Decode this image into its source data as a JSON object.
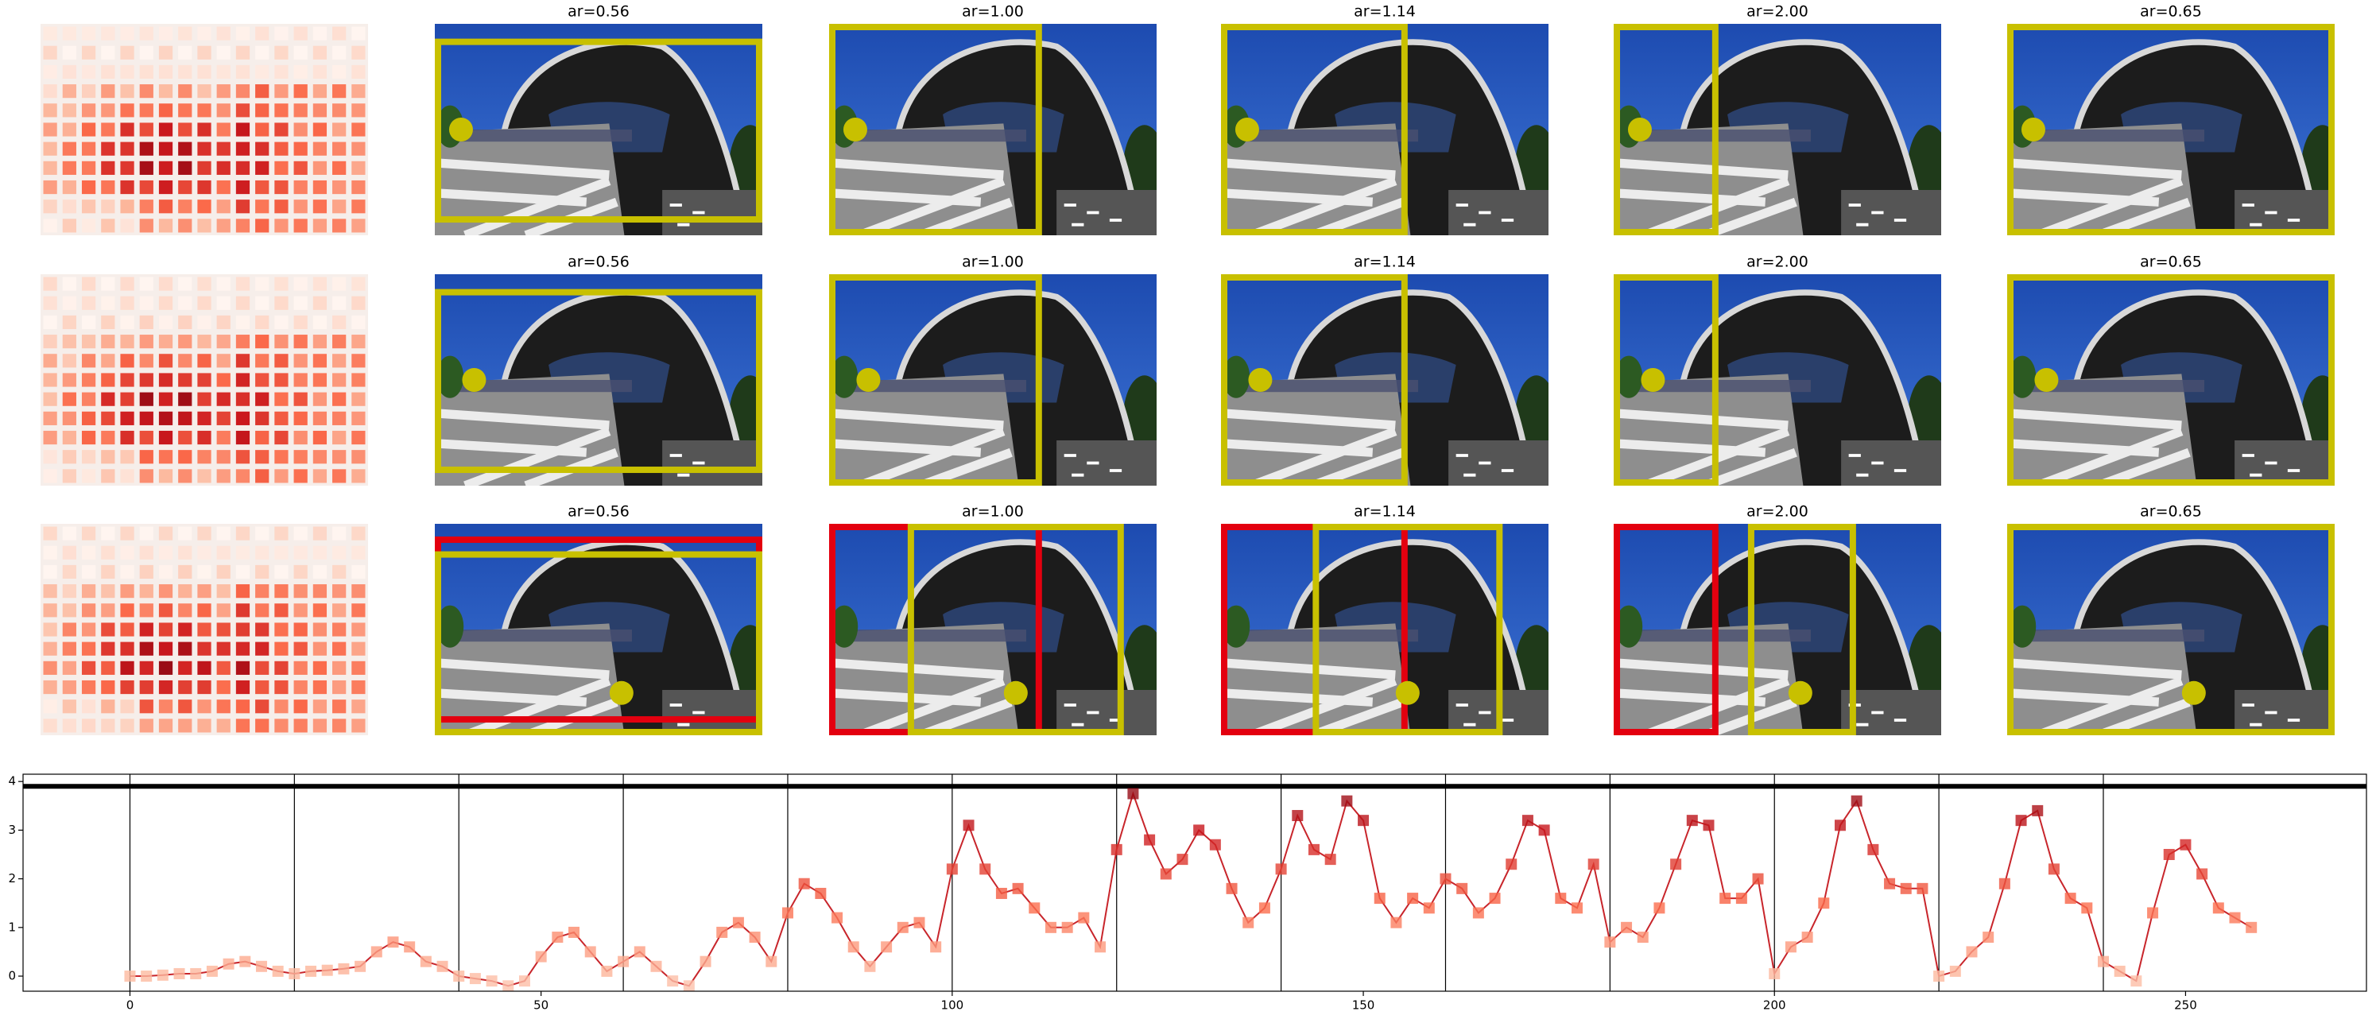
{
  "panels": {
    "titles": [
      [
        "ar=0.56",
        "ar=1.00",
        "ar=1.14",
        "ar=2.00",
        "ar=0.65"
      ],
      [
        "ar=0.56",
        "ar=1.00",
        "ar=1.14",
        "ar=2.00",
        "ar=0.65"
      ],
      [
        "ar=0.56",
        "ar=1.00",
        "ar=1.14",
        "ar=2.00",
        "ar=0.65"
      ]
    ]
  },
  "chart_data": {
    "type": "line",
    "color": "#c8252b",
    "x": [
      0,
      2,
      4,
      6,
      8,
      10,
      12,
      14,
      16,
      18,
      20,
      22,
      24,
      26,
      28,
      30,
      32,
      34,
      36,
      38,
      40,
      42,
      44,
      46,
      48,
      50,
      52,
      54,
      56,
      58,
      60,
      62,
      64,
      66,
      68,
      70,
      72,
      74,
      76,
      78,
      80,
      82,
      84,
      86,
      88,
      90,
      92,
      94,
      96,
      98,
      100,
      102,
      104,
      106,
      108,
      110,
      112,
      114,
      116,
      118,
      120,
      122,
      124,
      126,
      128,
      130,
      132,
      134,
      136,
      138,
      140,
      142,
      144,
      146,
      148,
      150,
      152,
      154,
      156,
      158,
      160,
      162,
      164,
      166,
      168,
      170,
      172,
      174,
      176,
      178,
      180,
      182,
      184,
      186,
      188,
      190,
      192,
      194,
      196,
      198,
      200,
      202,
      204,
      206,
      208,
      210,
      212,
      214,
      216,
      218,
      220,
      222,
      224,
      226,
      228,
      230,
      232,
      234,
      236,
      238,
      240,
      242,
      244,
      246,
      248,
      250,
      252,
      254,
      256,
      258
    ],
    "values": [
      0,
      0,
      0.02,
      0.05,
      0.05,
      0.1,
      0.25,
      0.3,
      0.2,
      0.1,
      0.05,
      0.1,
      0.12,
      0.15,
      0.2,
      0.5,
      0.7,
      0.6,
      0.3,
      0.2,
      0,
      -0.05,
      -0.1,
      -0.2,
      -0.1,
      0.4,
      0.8,
      0.9,
      0.5,
      0.1,
      0.3,
      0.5,
      0.2,
      -0.1,
      -0.2,
      0.3,
      0.9,
      1.1,
      0.8,
      0.3,
      1.3,
      1.9,
      1.7,
      1.2,
      0.6,
      0.2,
      0.6,
      1.0,
      1.1,
      0.6,
      2.2,
      3.1,
      2.2,
      1.7,
      1.8,
      1.4,
      1.0,
      1.0,
      1.2,
      0.6,
      2.6,
      3.75,
      2.8,
      2.1,
      2.4,
      3.0,
      2.7,
      1.8,
      1.1,
      1.4,
      2.2,
      3.3,
      2.6,
      2.4,
      3.6,
      3.2,
      1.6,
      1.1,
      1.6,
      1.4,
      2.0,
      1.8,
      1.3,
      1.6,
      2.3,
      3.2,
      3.0,
      1.6,
      1.4,
      2.3,
      0.7,
      1.0,
      0.8,
      1.4,
      2.3,
      3.2,
      3.1,
      1.6,
      1.6,
      2.0,
      0.05,
      0.6,
      0.8,
      1.5,
      3.1,
      3.6,
      2.6,
      1.9,
      1.8,
      1.8,
      0,
      0.1,
      0.5,
      0.8,
      1.9,
      3.2,
      3.4,
      2.2,
      1.6,
      1.4,
      0.3,
      0.1,
      -0.1,
      1.3,
      2.5,
      2.7,
      2.1,
      1.4,
      1.2,
      1.0
    ],
    "xlim": [
      -13,
      272
    ],
    "ylim": [
      -0.31,
      4.15
    ],
    "xticks": [
      0,
      50,
      100,
      150,
      200,
      250
    ],
    "yticks": [
      0,
      1,
      2,
      3,
      4
    ],
    "vlines": [
      0,
      20,
      40,
      60,
      80,
      100,
      120,
      140,
      160,
      180,
      200,
      220,
      240
    ],
    "hline": 3.9
  }
}
